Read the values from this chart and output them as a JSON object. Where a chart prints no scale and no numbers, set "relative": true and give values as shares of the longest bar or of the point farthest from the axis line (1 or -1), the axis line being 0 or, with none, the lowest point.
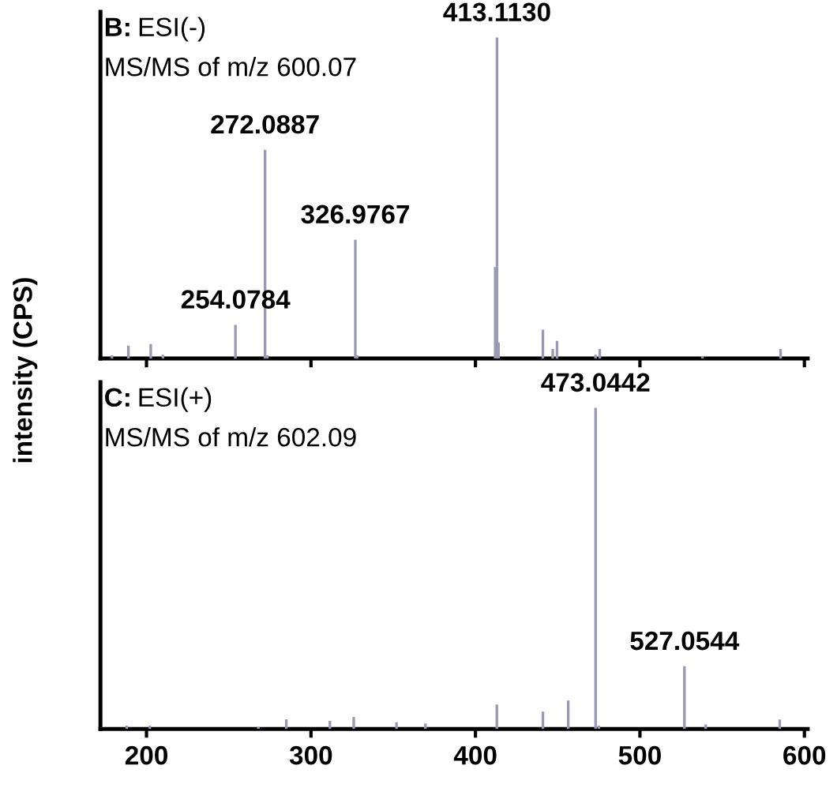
{
  "chart_data": [
    {
      "type": "bar",
      "title": "B: ESI(-)",
      "subtitle": "MS/MS of m/z 600.07",
      "ylabel": "intensity (CPS)",
      "relative": true,
      "tick_labels": false,
      "xlim": [
        172,
        602
      ],
      "xticks": [
        200,
        300,
        400,
        500,
        600
      ],
      "x": [
        179,
        189,
        202.6,
        210,
        254.0784,
        272.0887,
        273.5,
        326.9767,
        328,
        412,
        413.113,
        414,
        441,
        447,
        449.6,
        473,
        475.6,
        538,
        585.5
      ],
      "series": [
        {
          "color": "#9a9ab8",
          "values": [
            0.01,
            0.04,
            0.045,
            0.012,
            0.105,
            0.65,
            0.01,
            0.37,
            0.01,
            0.285,
            1.0,
            0.05,
            0.09,
            0.03,
            0.055,
            0.012,
            0.03,
            0.008,
            0.03
          ]
        }
      ],
      "annotations": [
        {
          "text": "254.0784",
          "x": 254.0784,
          "y": 0.105
        },
        {
          "text": "272.0887",
          "x": 272.0887,
          "y": 0.65
        },
        {
          "text": "326.9767",
          "x": 326.9767,
          "y": 0.37
        },
        {
          "text": "413.1130",
          "x": 413.113,
          "y": 1.0
        }
      ]
    },
    {
      "type": "bar",
      "title": "C: ESI(+)",
      "subtitle": "MS/MS of m/z 602.09",
      "relative": true,
      "tick_labels": "x",
      "xlim": [
        172,
        602
      ],
      "xticks": [
        200,
        300,
        400,
        500,
        600
      ],
      "x": [
        188,
        202,
        268,
        285,
        311.5,
        326,
        352,
        369.6,
        413,
        441,
        456.4,
        473.0442,
        475,
        527.0544,
        540,
        585
      ],
      "series": [
        {
          "color": "#9a9ab8",
          "values": [
            0.01,
            0.01,
            0.006,
            0.03,
            0.025,
            0.037,
            0.02,
            0.017,
            0.076,
            0.054,
            0.088,
            1.0,
            0.01,
            0.195,
            0.014,
            0.029
          ]
        }
      ],
      "annotations": [
        {
          "text": "473.0442",
          "x": 473.0442,
          "y": 1.0
        },
        {
          "text": "527.0544",
          "x": 527.0544,
          "y": 0.195
        }
      ]
    }
  ]
}
